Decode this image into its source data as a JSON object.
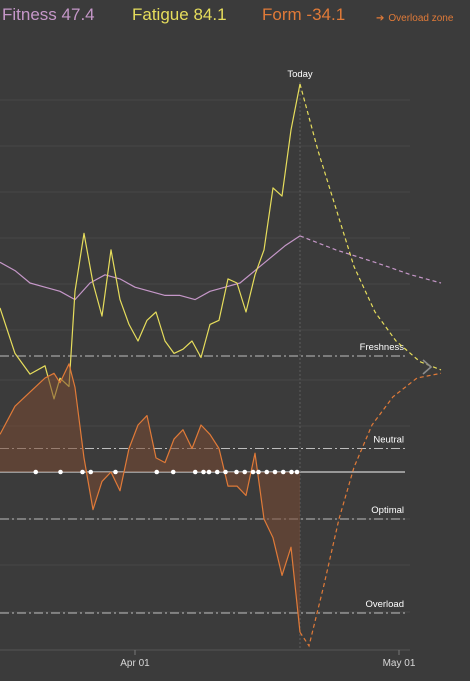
{
  "header": {
    "fitness": {
      "label": "Fitness",
      "value": "47.4",
      "color": "#c597c8"
    },
    "fatigue": {
      "label": "Fatigue",
      "value": "84.1",
      "color": "#e6dd5c"
    },
    "form": {
      "label": "Form",
      "value": "-34.1",
      "color": "#e07a38"
    },
    "overload_zone_label": "Overload zone",
    "overload_zone_color": "#e07a38"
  },
  "nav": {
    "next_icon": "chevron-right-icon"
  },
  "chart_data": {
    "type": "line",
    "xlabel": "",
    "ylabel": "",
    "x_ticks": [
      "Apr 01",
      "May 01"
    ],
    "today_label": "Today",
    "grid": true,
    "reference_lines": [
      {
        "name": "Freshness",
        "value": 25
      },
      {
        "name": "Neutral",
        "value": 5
      },
      {
        "name": "Optimal",
        "value": -10
      },
      {
        "name": "Overload",
        "value": -30
      }
    ],
    "series": [
      {
        "name": "Fitness",
        "color": "#c597c8",
        "points": [
          [
            0,
            41
          ],
          [
            5,
            39
          ],
          [
            10,
            36
          ],
          [
            15,
            35
          ],
          [
            20,
            34
          ],
          [
            25,
            32
          ],
          [
            30,
            36
          ],
          [
            35,
            38
          ],
          [
            40,
            37
          ],
          [
            45,
            35
          ],
          [
            50,
            34
          ],
          [
            55,
            33
          ],
          [
            60,
            33
          ],
          [
            65,
            32
          ],
          [
            70,
            34
          ],
          [
            75,
            35
          ],
          [
            80,
            36
          ],
          [
            85,
            39
          ],
          [
            90,
            42
          ],
          [
            95,
            45
          ],
          [
            100,
            47.4
          ]
        ],
        "forecast": [
          [
            100,
            47.4
          ],
          [
            112,
            44
          ],
          [
            125,
            41
          ],
          [
            137,
            38
          ],
          [
            147,
            36
          ]
        ]
      },
      {
        "name": "Fatigue",
        "color": "#e6dd5c",
        "points": [
          [
            0,
            30
          ],
          [
            5,
            19
          ],
          [
            10,
            14
          ],
          [
            15,
            16
          ],
          [
            18,
            8
          ],
          [
            20,
            13
          ],
          [
            23,
            11
          ],
          [
            25,
            34
          ],
          [
            28,
            48
          ],
          [
            31,
            36
          ],
          [
            34,
            28
          ],
          [
            37,
            44
          ],
          [
            40,
            32
          ],
          [
            43,
            26
          ],
          [
            46,
            22
          ],
          [
            49,
            27
          ],
          [
            52,
            29
          ],
          [
            55,
            22
          ],
          [
            58,
            19
          ],
          [
            61,
            20
          ],
          [
            64,
            22
          ],
          [
            67,
            18
          ],
          [
            70,
            26
          ],
          [
            73,
            27
          ],
          [
            76,
            37
          ],
          [
            79,
            36
          ],
          [
            82,
            29
          ],
          [
            85,
            38
          ],
          [
            88,
            44
          ],
          [
            91,
            59
          ],
          [
            94,
            57
          ],
          [
            97,
            73
          ],
          [
            100,
            84.1
          ]
        ],
        "forecast": [
          [
            100,
            84.1
          ],
          [
            106,
            68
          ],
          [
            112,
            54
          ],
          [
            118,
            40
          ],
          [
            125,
            29
          ],
          [
            132,
            22
          ],
          [
            140,
            17
          ],
          [
            147,
            15
          ]
        ]
      },
      {
        "name": "Form",
        "color": "#e07a38",
        "points": [
          [
            0,
            8
          ],
          [
            5,
            14
          ],
          [
            10,
            17
          ],
          [
            15,
            20
          ],
          [
            18,
            21
          ],
          [
            20,
            19
          ],
          [
            23,
            23
          ],
          [
            25,
            18
          ],
          [
            28,
            3
          ],
          [
            31,
            -8
          ],
          [
            34,
            -2
          ],
          [
            37,
            0
          ],
          [
            40,
            -4
          ],
          [
            43,
            5
          ],
          [
            46,
            10
          ],
          [
            49,
            12
          ],
          [
            52,
            3
          ],
          [
            55,
            2
          ],
          [
            58,
            7
          ],
          [
            61,
            9
          ],
          [
            64,
            5
          ],
          [
            67,
            10
          ],
          [
            70,
            8
          ],
          [
            73,
            5
          ],
          [
            76,
            -3
          ],
          [
            79,
            -3
          ],
          [
            82,
            -5
          ],
          [
            85,
            4
          ],
          [
            88,
            -10
          ],
          [
            91,
            -14
          ],
          [
            94,
            -22
          ],
          [
            97,
            -16
          ],
          [
            100,
            -34.1
          ]
        ],
        "forecast": [
          [
            100,
            -34.1
          ],
          [
            103,
            -37
          ],
          [
            108,
            -24
          ],
          [
            113,
            -10
          ],
          [
            118,
            1
          ],
          [
            124,
            10
          ],
          [
            131,
            16
          ],
          [
            139,
            20
          ],
          [
            147,
            21
          ]
        ]
      }
    ],
    "x_tick_positions": {
      "Apr 01": 45,
      "May 01": 133
    },
    "today_x": 100,
    "training_days": [
      13,
      22,
      30,
      33,
      42,
      57,
      63,
      71,
      74,
      76,
      79,
      82,
      86,
      89,
      92,
      94,
      97,
      100,
      103,
      106,
      108
    ]
  }
}
